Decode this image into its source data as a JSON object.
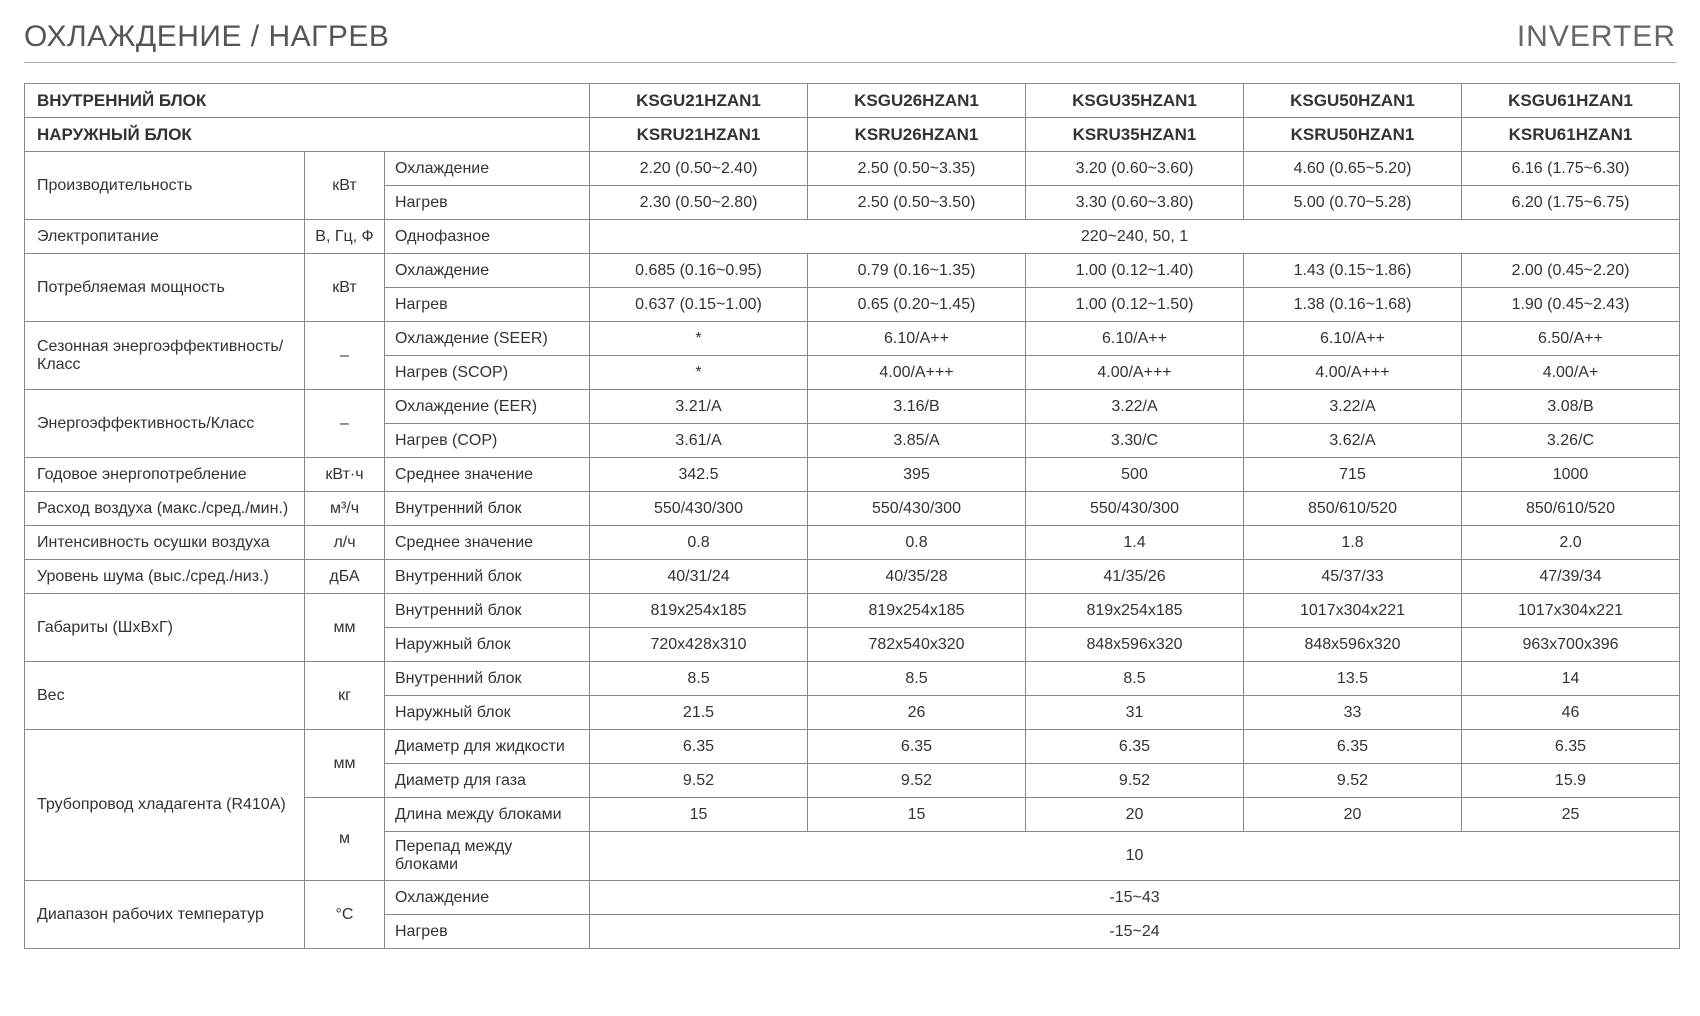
{
  "header": {
    "left": "ОХЛАЖДЕНИЕ / НАГРЕВ",
    "right": "INVERTER"
  },
  "labels": {
    "indoor": "ВНУТРЕННИЙ БЛОК",
    "outdoor": "НАРУЖНЫЙ БЛОК"
  },
  "models": {
    "indoor": [
      "KSGU21HZAN1",
      "KSGU26HZAN1",
      "KSGU35HZAN1",
      "KSGU50HZAN1",
      "KSGU61HZAN1"
    ],
    "outdoor": [
      "KSRU21HZAN1",
      "KSRU26HZAN1",
      "KSRU35HZAN1",
      "KSRU50HZAN1",
      "KSRU61HZAN1"
    ]
  },
  "rows": [
    {
      "param": "Производительность",
      "unit": "кВт",
      "sub": "Охлаждение",
      "v": [
        "2.20 (0.50~2.40)",
        "2.50 (0.50~3.35)",
        "3.20 (0.60~3.60)",
        "4.60 (0.65~5.20)",
        "6.16 (1.75~6.30)"
      ]
    },
    {
      "sub": "Нагрев",
      "v": [
        "2.30 (0.50~2.80)",
        "2.50 (0.50~3.50)",
        "3.30 (0.60~3.80)",
        "5.00 (0.70~5.28)",
        "6.20 (1.75~6.75)"
      ]
    },
    {
      "param": "Электропитание",
      "unit": "В, Гц, Ф",
      "sub": "Однофазное",
      "span": "220~240, 50, 1"
    },
    {
      "param": "Потребляемая мощность",
      "unit": "кВт",
      "sub": "Охлаждение",
      "v": [
        "0.685 (0.16~0.95)",
        "0.79 (0.16~1.35)",
        "1.00 (0.12~1.40)",
        "1.43 (0.15~1.86)",
        "2.00 (0.45~2.20)"
      ]
    },
    {
      "sub": "Нагрев",
      "v": [
        "0.637 (0.15~1.00)",
        "0.65 (0.20~1.45)",
        "1.00 (0.12~1.50)",
        "1.38 (0.16~1.68)",
        "1.90 (0.45~2.43)"
      ]
    },
    {
      "param": "Сезонная энергоэффективность/Класс",
      "unit": "–",
      "sub": "Охлаждение (SEER)",
      "v": [
        "*",
        "6.10/A++",
        "6.10/A++",
        "6.10/A++",
        "6.50/A++"
      ]
    },
    {
      "sub": "Нагрев (SCOP)",
      "v": [
        "*",
        "4.00/A+++",
        "4.00/A+++",
        "4.00/A+++",
        "4.00/A+"
      ]
    },
    {
      "param": "Энергоэффективность/Класс",
      "unit": "–",
      "sub": "Охлаждение (EER)",
      "v": [
        "3.21/A",
        "3.16/B",
        "3.22/A",
        "3.22/A",
        "3.08/B"
      ]
    },
    {
      "sub": "Нагрев (COP)",
      "v": [
        "3.61/A",
        "3.85/A",
        "3.30/C",
        "3.62/A",
        "3.26/C"
      ]
    },
    {
      "param": "Годовое энергопотребление",
      "unit": "кВт·ч",
      "sub": "Среднее значение",
      "v": [
        "342.5",
        "395",
        "500",
        "715",
        "1000"
      ]
    },
    {
      "param": "Расход воздуха (макс./сред./мин.)",
      "unit": "м³/ч",
      "sub": "Внутренний блок",
      "v": [
        "550/430/300",
        "550/430/300",
        "550/430/300",
        "850/610/520",
        "850/610/520"
      ]
    },
    {
      "param": "Интенсивность осушки воздуха",
      "unit": "л/ч",
      "sub": "Среднее значение",
      "v": [
        "0.8",
        "0.8",
        "1.4",
        "1.8",
        "2.0"
      ]
    },
    {
      "param": "Уровень шума (выс./сред./низ.)",
      "unit": "дБА",
      "sub": "Внутренний блок",
      "v": [
        "40/31/24",
        "40/35/28",
        "41/35/26",
        "45/37/33",
        "47/39/34"
      ]
    },
    {
      "param": "Габариты (ШхВхГ)",
      "unit": "мм",
      "sub": "Внутренний блок",
      "v": [
        "819x254x185",
        "819x254x185",
        "819x254x185",
        "1017x304x221",
        "1017x304x221"
      ]
    },
    {
      "sub": "Наружный блок",
      "v": [
        "720x428x310",
        "782x540x320",
        "848x596x320",
        "848x596x320",
        "963x700x396"
      ]
    },
    {
      "param": "Вес",
      "unit": "кг",
      "sub": "Внутренний блок",
      "v": [
        "8.5",
        "8.5",
        "8.5",
        "13.5",
        "14"
      ]
    },
    {
      "sub": "Наружный блок",
      "v": [
        "21.5",
        "26",
        "31",
        "33",
        "46"
      ]
    },
    {
      "param": "Трубопровод хладагента (R410A)",
      "unit": "мм",
      "unitspan": 2,
      "paramspan": 4,
      "sub": "Диаметр для жидкости",
      "v": [
        "6.35",
        "6.35",
        "6.35",
        "6.35",
        "6.35"
      ]
    },
    {
      "sub": "Диаметр для газа",
      "v": [
        "9.52",
        "9.52",
        "9.52",
        "9.52",
        "15.9"
      ]
    },
    {
      "unit": "м",
      "unitspan": 2,
      "sub": "Длина между блоками",
      "v": [
        "15",
        "15",
        "20",
        "20",
        "25"
      ]
    },
    {
      "sub": "Перепад между блоками",
      "span": "10"
    },
    {
      "param": "Диапазон рабочих температур",
      "unit": "°C",
      "sub": "Охлаждение",
      "span": "-15~43"
    },
    {
      "sub": "Нагрев",
      "span": "-15~24"
    }
  ],
  "rowspans": {
    "0": 2,
    "3": 2,
    "5": 2,
    "7": 2,
    "13": 2,
    "15": 2,
    "21": 2
  }
}
